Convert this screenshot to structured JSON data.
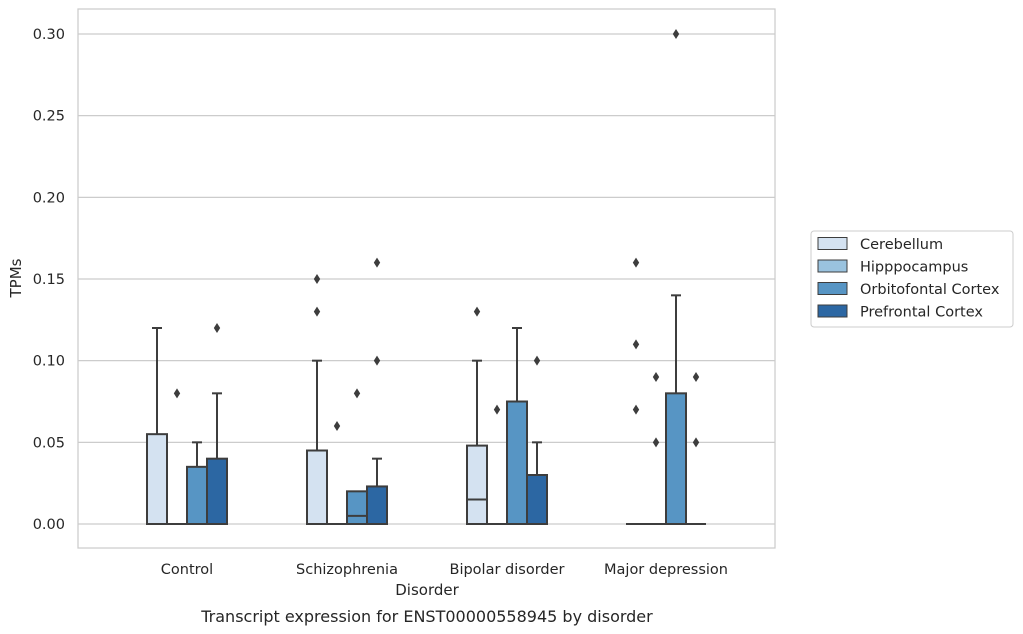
{
  "chart_data": {
    "type": "boxplot",
    "caption": "Transcript expression for ENST00000558945 by disorder",
    "xlabel": "Disorder",
    "ylabel": "TPMs",
    "categories": [
      "Control",
      "Schizophrenia",
      "Bipolar disorder",
      "Major depression"
    ],
    "ylim": [
      -0.015,
      0.315
    ],
    "yticks": [
      0.0,
      0.05,
      0.1,
      0.15,
      0.2,
      0.25,
      0.3
    ],
    "ytick_labels": [
      "0.00",
      "0.05",
      "0.10",
      "0.15",
      "0.20",
      "0.25",
      "0.30"
    ],
    "grid": "horizontal",
    "legend_position": "right",
    "series": [
      {
        "name": "Cerebellum",
        "color": "#d4e2f1",
        "boxes": [
          {
            "q1": 0.0,
            "median": 0.0,
            "q3": 0.055,
            "whisker_low": 0.0,
            "whisker_high": 0.12,
            "outliers": []
          },
          {
            "q1": 0.0,
            "median": 0.0,
            "q3": 0.045,
            "whisker_low": 0.0,
            "whisker_high": 0.1,
            "outliers": [
              0.13,
              0.15
            ]
          },
          {
            "q1": 0.0,
            "median": 0.015,
            "q3": 0.048,
            "whisker_low": 0.0,
            "whisker_high": 0.1,
            "outliers": [
              0.13
            ]
          },
          {
            "q1": 0.0,
            "median": 0.0,
            "q3": 0.0,
            "whisker_low": 0.0,
            "whisker_high": 0.0,
            "outliers": [
              0.07,
              0.11,
              0.16
            ]
          }
        ]
      },
      {
        "name": "Hipppocampus",
        "color": "#9ac3df",
        "boxes": [
          {
            "q1": 0.0,
            "median": 0.0,
            "q3": 0.0,
            "whisker_low": 0.0,
            "whisker_high": 0.0,
            "outliers": [
              0.08
            ]
          },
          {
            "q1": 0.0,
            "median": 0.0,
            "q3": 0.0,
            "whisker_low": 0.0,
            "whisker_high": 0.0,
            "outliers": [
              0.06
            ]
          },
          {
            "q1": 0.0,
            "median": 0.0,
            "q3": 0.0,
            "whisker_low": 0.0,
            "whisker_high": 0.0,
            "outliers": [
              0.07
            ]
          },
          {
            "q1": 0.0,
            "median": 0.0,
            "q3": 0.0,
            "whisker_low": 0.0,
            "whisker_high": 0.0,
            "outliers": [
              0.05,
              0.09
            ]
          }
        ]
      },
      {
        "name": "Orbitofontal Cortex",
        "color": "#5795c4",
        "boxes": [
          {
            "q1": 0.0,
            "median": 0.0,
            "q3": 0.035,
            "whisker_low": 0.0,
            "whisker_high": 0.05,
            "outliers": []
          },
          {
            "q1": 0.0,
            "median": 0.005,
            "q3": 0.02,
            "whisker_low": 0.0,
            "whisker_high": 0.02,
            "outliers": [
              0.08
            ]
          },
          {
            "q1": 0.0,
            "median": 0.0,
            "q3": 0.075,
            "whisker_low": 0.0,
            "whisker_high": 0.12,
            "outliers": []
          },
          {
            "q1": 0.0,
            "median": 0.0,
            "q3": 0.08,
            "whisker_low": 0.0,
            "whisker_high": 0.14,
            "outliers": [
              0.3
            ]
          }
        ]
      },
      {
        "name": "Prefrontal Cortex",
        "color": "#2c67a3",
        "boxes": [
          {
            "q1": 0.0,
            "median": 0.0,
            "q3": 0.04,
            "whisker_low": 0.0,
            "whisker_high": 0.08,
            "outliers": [
              0.12
            ]
          },
          {
            "q1": 0.0,
            "median": 0.0,
            "q3": 0.023,
            "whisker_low": 0.0,
            "whisker_high": 0.04,
            "outliers": [
              0.1,
              0.16
            ]
          },
          {
            "q1": 0.0,
            "median": 0.0,
            "q3": 0.03,
            "whisker_low": 0.0,
            "whisker_high": 0.05,
            "outliers": [
              0.1
            ]
          },
          {
            "q1": 0.0,
            "median": 0.0,
            "q3": 0.0,
            "whisker_low": 0.0,
            "whisker_high": 0.0,
            "outliers": [
              0.05,
              0.09
            ]
          }
        ]
      }
    ]
  }
}
